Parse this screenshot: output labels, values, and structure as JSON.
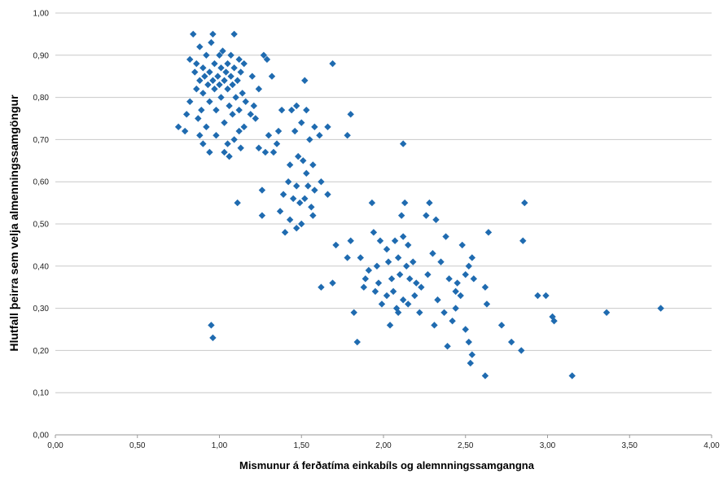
{
  "chart_data": {
    "type": "scatter",
    "title": "",
    "xlabel": "Mismunur á ferðatíma einkabíls og alemnningssamgangna",
    "ylabel": "Hlutfall þeirra sem velja almenningssamgöngur",
    "xlim": [
      0,
      4
    ],
    "ylim": [
      0,
      1
    ],
    "grid": {
      "horizontal": true,
      "vertical": false
    },
    "legend": "none",
    "x_ticks": [
      "0,00",
      "0,50",
      "1,00",
      "1,50",
      "2,00",
      "2,50",
      "3,00",
      "3,50",
      "4,00"
    ],
    "y_ticks": [
      "0,00",
      "0,10",
      "0,20",
      "0,30",
      "0,40",
      "0,50",
      "0,60",
      "0,70",
      "0,80",
      "0,90",
      "1,00"
    ],
    "series": [
      {
        "marker": "diamond",
        "color": "#1f6bb0",
        "points": [
          [
            0.84,
            0.95
          ],
          [
            0.96,
            0.95
          ],
          [
            1.09,
            0.95
          ],
          [
            0.95,
            0.93
          ],
          [
            0.88,
            0.92
          ],
          [
            1.02,
            0.91
          ],
          [
            1.07,
            0.9
          ],
          [
            0.82,
            0.89
          ],
          [
            0.92,
            0.9
          ],
          [
            1.0,
            0.9
          ],
          [
            1.12,
            0.89
          ],
          [
            0.86,
            0.88
          ],
          [
            0.97,
            0.88
          ],
          [
            1.05,
            0.88
          ],
          [
            1.15,
            0.88
          ],
          [
            0.9,
            0.87
          ],
          [
            1.01,
            0.87
          ],
          [
            1.09,
            0.87
          ],
          [
            0.85,
            0.86
          ],
          [
            0.94,
            0.86
          ],
          [
            1.04,
            0.86
          ],
          [
            1.13,
            0.86
          ],
          [
            0.91,
            0.85
          ],
          [
            0.99,
            0.85
          ],
          [
            1.07,
            0.85
          ],
          [
            0.88,
            0.84
          ],
          [
            0.96,
            0.84
          ],
          [
            1.03,
            0.84
          ],
          [
            1.11,
            0.84
          ],
          [
            1.2,
            0.85
          ],
          [
            0.93,
            0.83
          ],
          [
            1.0,
            0.83
          ],
          [
            1.08,
            0.83
          ],
          [
            0.86,
            0.82
          ],
          [
            0.97,
            0.82
          ],
          [
            1.05,
            0.82
          ],
          [
            1.14,
            0.81
          ],
          [
            0.9,
            0.81
          ],
          [
            1.01,
            0.8
          ],
          [
            1.1,
            0.8
          ],
          [
            1.16,
            0.79
          ],
          [
            0.82,
            0.79
          ],
          [
            0.94,
            0.79
          ],
          [
            1.06,
            0.78
          ],
          [
            1.12,
            0.77
          ],
          [
            0.89,
            0.77
          ],
          [
            0.98,
            0.77
          ],
          [
            1.19,
            0.76
          ],
          [
            0.8,
            0.76
          ],
          [
            1.08,
            0.76
          ],
          [
            1.22,
            0.75
          ],
          [
            0.87,
            0.75
          ],
          [
            1.03,
            0.74
          ],
          [
            1.15,
            0.73
          ],
          [
            0.92,
            0.73
          ],
          [
            0.75,
            0.73
          ],
          [
            0.79,
            0.72
          ],
          [
            1.12,
            0.72
          ],
          [
            0.98,
            0.71
          ],
          [
            0.88,
            0.71
          ],
          [
            1.09,
            0.7
          ],
          [
            1.05,
            0.69
          ],
          [
            0.9,
            0.69
          ],
          [
            1.13,
            0.68
          ],
          [
            0.94,
            0.67
          ],
          [
            1.03,
            0.67
          ],
          [
            1.06,
            0.66
          ],
          [
            1.24,
            0.68
          ],
          [
            1.28,
            0.67
          ],
          [
            1.33,
            0.67
          ],
          [
            1.26,
            0.58
          ],
          [
            1.26,
            0.52
          ],
          [
            1.11,
            0.55
          ],
          [
            0.95,
            0.26
          ],
          [
            0.96,
            0.23
          ],
          [
            1.27,
            0.9
          ],
          [
            1.29,
            0.89
          ],
          [
            1.32,
            0.85
          ],
          [
            1.24,
            0.82
          ],
          [
            1.21,
            0.78
          ],
          [
            1.38,
            0.77
          ],
          [
            1.44,
            0.77
          ],
          [
            1.47,
            0.78
          ],
          [
            1.53,
            0.77
          ],
          [
            1.58,
            0.73
          ],
          [
            1.5,
            0.74
          ],
          [
            1.46,
            0.72
          ],
          [
            1.36,
            0.72
          ],
          [
            1.61,
            0.71
          ],
          [
            1.55,
            0.7
          ],
          [
            1.66,
            0.73
          ],
          [
            1.69,
            0.88
          ],
          [
            1.52,
            0.84
          ],
          [
            1.78,
            0.71
          ],
          [
            1.8,
            0.76
          ],
          [
            1.48,
            0.66
          ],
          [
            1.51,
            0.65
          ],
          [
            1.57,
            0.64
          ],
          [
            1.42,
            0.6
          ],
          [
            1.47,
            0.59
          ],
          [
            1.54,
            0.59
          ],
          [
            1.39,
            0.57
          ],
          [
            1.45,
            0.56
          ],
          [
            1.52,
            0.56
          ],
          [
            1.49,
            0.55
          ],
          [
            1.56,
            0.54
          ],
          [
            1.37,
            0.53
          ],
          [
            1.43,
            0.51
          ],
          [
            1.5,
            0.5
          ],
          [
            1.47,
            0.49
          ],
          [
            1.4,
            0.48
          ],
          [
            1.58,
            0.58
          ],
          [
            1.62,
            0.6
          ],
          [
            1.66,
            0.57
          ],
          [
            1.35,
            0.69
          ],
          [
            1.3,
            0.71
          ],
          [
            1.53,
            0.62
          ],
          [
            1.43,
            0.64
          ],
          [
            1.57,
            0.52
          ],
          [
            1.71,
            0.45
          ],
          [
            1.78,
            0.42
          ],
          [
            1.8,
            0.46
          ],
          [
            1.86,
            0.42
          ],
          [
            1.69,
            0.36
          ],
          [
            1.62,
            0.35
          ],
          [
            1.82,
            0.29
          ],
          [
            1.84,
            0.22
          ],
          [
            1.93,
            0.55
          ],
          [
            2.12,
            0.69
          ],
          [
            1.94,
            0.48
          ],
          [
            1.98,
            0.46
          ],
          [
            2.02,
            0.44
          ],
          [
            2.07,
            0.46
          ],
          [
            2.12,
            0.47
          ],
          [
            2.15,
            0.45
          ],
          [
            1.91,
            0.39
          ],
          [
            1.96,
            0.4
          ],
          [
            2.03,
            0.41
          ],
          [
            2.09,
            0.42
          ],
          [
            2.14,
            0.4
          ],
          [
            2.18,
            0.41
          ],
          [
            1.89,
            0.37
          ],
          [
            1.97,
            0.36
          ],
          [
            2.05,
            0.37
          ],
          [
            2.1,
            0.38
          ],
          [
            2.16,
            0.37
          ],
          [
            2.2,
            0.36
          ],
          [
            1.88,
            0.35
          ],
          [
            1.95,
            0.34
          ],
          [
            2.02,
            0.33
          ],
          [
            2.06,
            0.34
          ],
          [
            2.12,
            0.32
          ],
          [
            2.19,
            0.33
          ],
          [
            2.23,
            0.35
          ],
          [
            1.99,
            0.31
          ],
          [
            2.08,
            0.3
          ],
          [
            2.15,
            0.31
          ],
          [
            2.22,
            0.29
          ],
          [
            2.04,
            0.26
          ],
          [
            2.09,
            0.29
          ],
          [
            2.13,
            0.55
          ],
          [
            2.28,
            0.55
          ],
          [
            2.26,
            0.52
          ],
          [
            2.32,
            0.51
          ],
          [
            2.11,
            0.52
          ],
          [
            2.38,
            0.47
          ],
          [
            2.3,
            0.43
          ],
          [
            2.35,
            0.41
          ],
          [
            2.27,
            0.38
          ],
          [
            2.4,
            0.37
          ],
          [
            2.45,
            0.36
          ],
          [
            2.33,
            0.32
          ],
          [
            2.37,
            0.29
          ],
          [
            2.42,
            0.27
          ],
          [
            2.31,
            0.26
          ],
          [
            2.39,
            0.21
          ],
          [
            2.47,
            0.33
          ],
          [
            2.44,
            0.3
          ],
          [
            2.5,
            0.38
          ],
          [
            2.52,
            0.4
          ],
          [
            2.55,
            0.37
          ],
          [
            2.48,
            0.45
          ],
          [
            2.54,
            0.42
          ],
          [
            2.44,
            0.34
          ],
          [
            2.5,
            0.25
          ],
          [
            2.52,
            0.22
          ],
          [
            2.54,
            0.19
          ],
          [
            2.53,
            0.17
          ],
          [
            2.62,
            0.35
          ],
          [
            2.63,
            0.31
          ],
          [
            2.62,
            0.14
          ],
          [
            2.72,
            0.26
          ],
          [
            2.78,
            0.22
          ],
          [
            2.84,
            0.2
          ],
          [
            2.85,
            0.46
          ],
          [
            2.86,
            0.55
          ],
          [
            2.64,
            0.48
          ],
          [
            2.94,
            0.33
          ],
          [
            2.99,
            0.33
          ],
          [
            3.03,
            0.28
          ],
          [
            3.04,
            0.27
          ],
          [
            3.15,
            0.14
          ],
          [
            3.36,
            0.29
          ],
          [
            3.69,
            0.3
          ]
        ]
      }
    ]
  }
}
